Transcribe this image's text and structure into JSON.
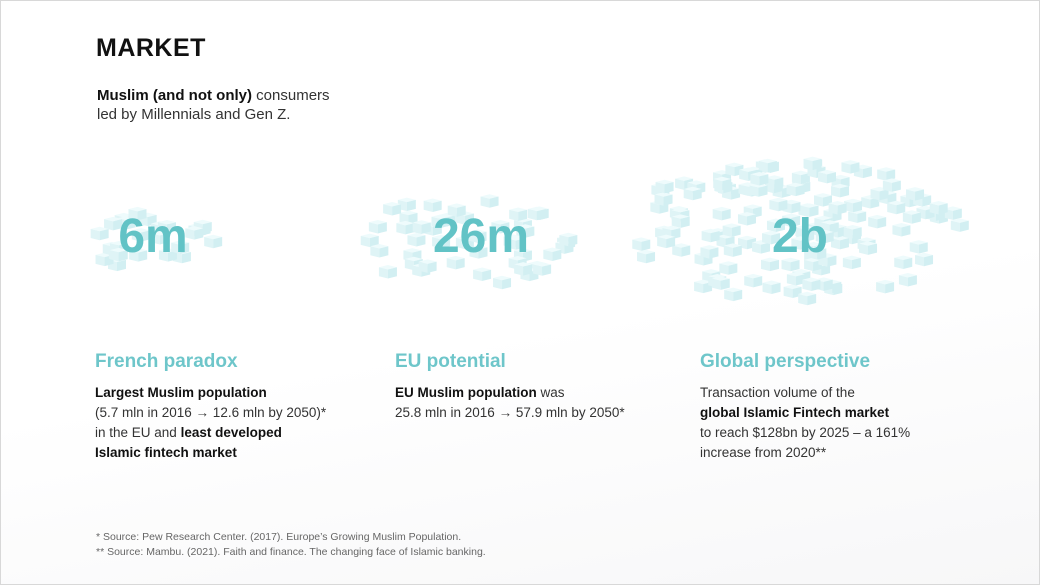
{
  "header": {
    "title": "MARKET",
    "subtitle": [
      [
        "Muslim (and not only)",
        " consumers"
      ],
      [
        "led by Millennials and Gen Z."
      ]
    ]
  },
  "columns": [
    {
      "figure": "6m",
      "heading": "French paradox",
      "body": [
        [
          "Largest Muslim population"
        ],
        [
          "(5.7 mln in 2016 → 12.6 mln by 2050)*"
        ],
        [
          "in the EU and ",
          "least developed"
        ],
        [
          "Islamic fintech market"
        ]
      ]
    },
    {
      "figure": "26m",
      "heading": "EU potential",
      "body": [
        [
          "EU Muslim population",
          " was"
        ],
        [
          "25.8 mln in 2016 → 57.9 mln by 2050*"
        ]
      ]
    },
    {
      "figure": "2b",
      "heading": "Global perspective",
      "body": [
        [
          "Transaction volume of the"
        ],
        [
          "global Islamic Fintech market"
        ],
        [
          "to reach $128bn by 2025 – a 161%"
        ],
        [
          "increase from 2020**"
        ]
      ]
    }
  ],
  "footnotes": [
    "* Source: Pew Research Center. (2017). Europe’s Growing Muslim Population.",
    "** Source: Mambu. (2021). Faith and finance. The changing face of Islamic banking."
  ]
}
